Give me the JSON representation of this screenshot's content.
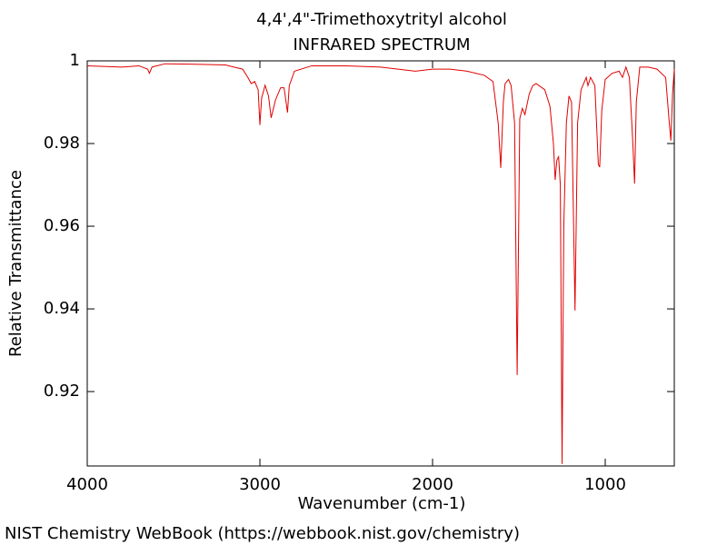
{
  "chart_data": {
    "type": "line",
    "title": "4,4',4\"-Trimethoxytrityl alcohol",
    "subtitle": "INFRARED SPECTRUM",
    "x_label": "Wavenumber (cm-1)",
    "y_label": "Relative Transmittance",
    "footer": "NIST Chemistry WebBook (https://webbook.nist.gov/chemistry)",
    "color": "#e00000",
    "x": [
      4000,
      3800,
      3700,
      3650,
      3640,
      3625,
      3550,
      3400,
      3200,
      3150,
      3100,
      3070,
      3050,
      3030,
      3010,
      3000,
      2990,
      2970,
      2950,
      2935,
      2910,
      2880,
      2860,
      2840,
      2830,
      2800,
      2700,
      2500,
      2300,
      2100,
      2000,
      1900,
      1800,
      1700,
      1650,
      1620,
      1605,
      1590,
      1580,
      1560,
      1545,
      1525,
      1510,
      1495,
      1480,
      1465,
      1455,
      1440,
      1420,
      1400,
      1350,
      1320,
      1300,
      1290,
      1280,
      1270,
      1260,
      1250,
      1240,
      1225,
      1210,
      1195,
      1175,
      1160,
      1140,
      1110,
      1100,
      1085,
      1060,
      1040,
      1032,
      1020,
      1000,
      960,
      920,
      900,
      880,
      860,
      840,
      830,
      820,
      800,
      750,
      700,
      650,
      630,
      620,
      610,
      600
    ],
    "values": [
      0.9988,
      0.9985,
      0.9988,
      0.998,
      0.997,
      0.9985,
      0.9993,
      0.9992,
      0.999,
      0.9985,
      0.998,
      0.996,
      0.9945,
      0.995,
      0.993,
      0.9845,
      0.991,
      0.9941,
      0.9915,
      0.9862,
      0.9905,
      0.9935,
      0.9935,
      0.9875,
      0.994,
      0.9975,
      0.9988,
      0.9988,
      0.9985,
      0.9975,
      0.998,
      0.998,
      0.9975,
      0.9965,
      0.995,
      0.985,
      0.9741,
      0.99,
      0.9945,
      0.9955,
      0.994,
      0.985,
      0.924,
      0.986,
      0.9885,
      0.987,
      0.989,
      0.992,
      0.994,
      0.9945,
      0.993,
      0.989,
      0.98,
      0.9712,
      0.976,
      0.9768,
      0.97,
      0.9025,
      0.96,
      0.985,
      0.9915,
      0.99,
      0.9396,
      0.985,
      0.993,
      0.996,
      0.994,
      0.996,
      0.994,
      0.975,
      0.9743,
      0.988,
      0.9955,
      0.997,
      0.9975,
      0.996,
      0.9985,
      0.996,
      0.98,
      0.9703,
      0.99,
      0.9985,
      0.9985,
      0.998,
      0.996,
      0.9855,
      0.9807,
      0.992,
      0.998
    ],
    "xlim": [
      4000,
      600
    ],
    "xticks": [
      4000,
      3000,
      2000,
      1000
    ],
    "ylim": [
      0.902,
      1
    ],
    "yticks": [
      0.92,
      0.94,
      0.96,
      0.98,
      1
    ]
  }
}
